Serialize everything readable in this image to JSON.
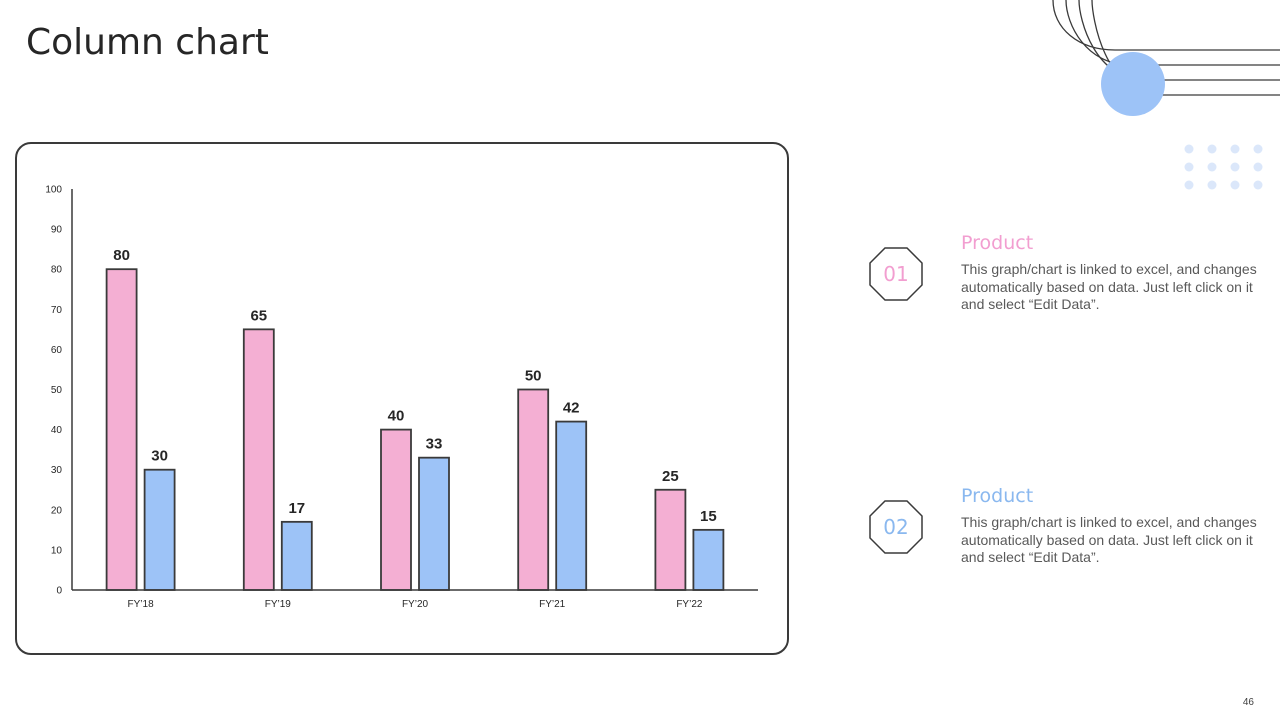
{
  "title": "Column chart",
  "page_number": "46",
  "colors": {
    "pink": "#f4afd3",
    "blue": "#9dc3f7",
    "pink_text": "#f29ed0",
    "blue_text": "#8ab8ef",
    "outline": "#3a3a3a"
  },
  "items": [
    {
      "number": "01",
      "heading": "Product",
      "text": "This graph/chart is linked to excel, and changes automatically based on data. Just left click on it and select “Edit Data”."
    },
    {
      "number": "02",
      "heading": "Product",
      "text": "This graph/chart is linked to excel, and changes automatically based on data. Just left click on it and select “Edit Data”."
    }
  ],
  "chart_data": {
    "type": "bar",
    "categories": [
      "FY’18",
      "FY’19",
      "FY’20",
      "FY’21",
      "FY’22"
    ],
    "series": [
      {
        "values": [
          80,
          65,
          40,
          50,
          25
        ],
        "color": "#f4afd3"
      },
      {
        "values": [
          30,
          17,
          33,
          42,
          15
        ],
        "color": "#9dc3f7"
      }
    ],
    "ylim": [
      0,
      100
    ],
    "yticks": [
      0,
      10,
      20,
      30,
      40,
      50,
      60,
      70,
      80,
      90,
      100
    ],
    "title": "",
    "xlabel": "",
    "ylabel": "",
    "grid": false,
    "legend": "none",
    "data_labels": true
  }
}
